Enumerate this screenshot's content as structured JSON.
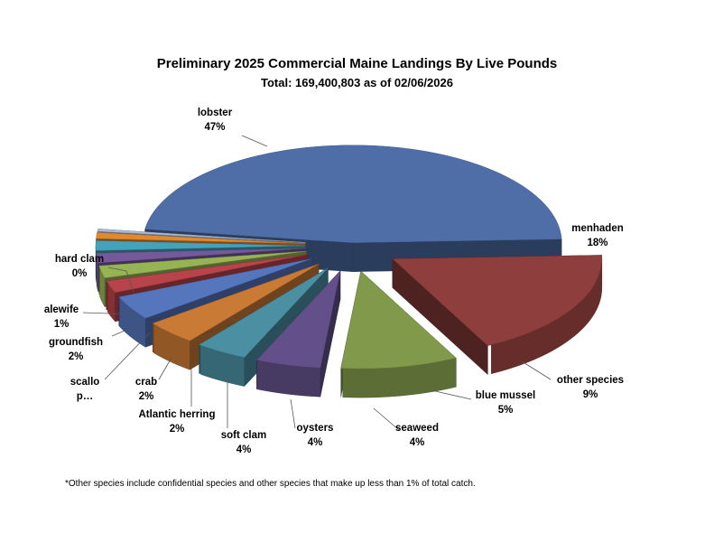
{
  "title": "Preliminary 2025 Commercial Maine Landings By Live Pounds",
  "subtitle": "Total: 169,400,803  as of 02/06/2026",
  "footnote": "*Other species include confidential species and other species that make up less than 1% of total catch.",
  "chart_data": {
    "type": "pie",
    "exploded": true,
    "three_d": true,
    "slices": [
      {
        "name": "lobster",
        "pct_label": "47%",
        "value": 47,
        "color": "#4F6EA8"
      },
      {
        "name": "menhaden",
        "pct_label": "18%",
        "value": 18,
        "color": "#8E3E3C"
      },
      {
        "name": "other species",
        "pct_label": "9%",
        "value": 9,
        "color": "#80994A"
      },
      {
        "name": "blue mussel",
        "pct_label": "5%",
        "value": 5,
        "color": "#63508A"
      },
      {
        "name": "seaweed",
        "pct_label": "4%",
        "value": 4,
        "color": "#4B8FA3"
      },
      {
        "name": "oysters",
        "pct_label": "4%",
        "value": 4,
        "color": "#C97A35"
      },
      {
        "name": "soft clam",
        "pct_label": "4%",
        "value": 4,
        "color": "#5575BD"
      },
      {
        "name": "Atlantic herring",
        "pct_label": "2%",
        "value": 2,
        "color": "#B8434A"
      },
      {
        "name": "crab",
        "pct_label": "2%",
        "value": 2,
        "color": "#97B455"
      },
      {
        "name": "scallo\np…",
        "pct_label": "",
        "value": 1.6,
        "color": "#76599B"
      },
      {
        "name": "groundfish",
        "pct_label": "2%",
        "value": 1.6,
        "color": "#45A2BB"
      },
      {
        "name": "alewife",
        "pct_label": "1%",
        "value": 1,
        "color": "#E0892F"
      },
      {
        "name": "hard clam",
        "pct_label": "0%",
        "value": 0.4,
        "color": "#A8BCDD"
      }
    ]
  }
}
